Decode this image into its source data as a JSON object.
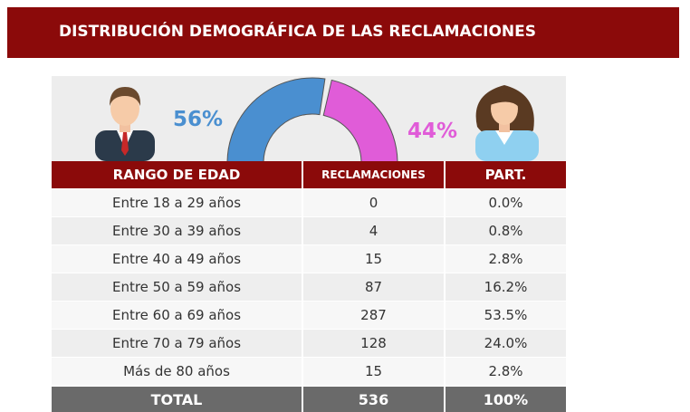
{
  "header": {
    "title": "DISTRIBUCIÓN DEMOGRÁFICA DE LAS RECLAMACIONES"
  },
  "gauge": {
    "segments": [
      {
        "value": 56,
        "label": "56%",
        "color": "#4a8fd0"
      },
      {
        "value": 44,
        "label": "44%",
        "color": "#e05cd8"
      }
    ]
  },
  "table": {
    "columns": [
      "RANGO DE EDAD",
      "RECLAMACIONES",
      "PART."
    ],
    "rows": [
      [
        "Entre 18 a 29 años",
        "0",
        "0.0%"
      ],
      [
        "Entre 30 a 39 años",
        "4",
        "0.8%"
      ],
      [
        "Entre 40 a 49 años",
        "15",
        "2.8%"
      ],
      [
        "Entre 50 a 59 años",
        "87",
        "16.2%"
      ],
      [
        "Entre 60 a 69 años",
        "287",
        "53.5%"
      ],
      [
        "Entre 70 a 79 años",
        "128",
        "24.0%"
      ],
      [
        "Más de 80 años",
        "15",
        "2.8%"
      ]
    ],
    "total": [
      "TOTAL",
      "536",
      "100%"
    ]
  }
}
